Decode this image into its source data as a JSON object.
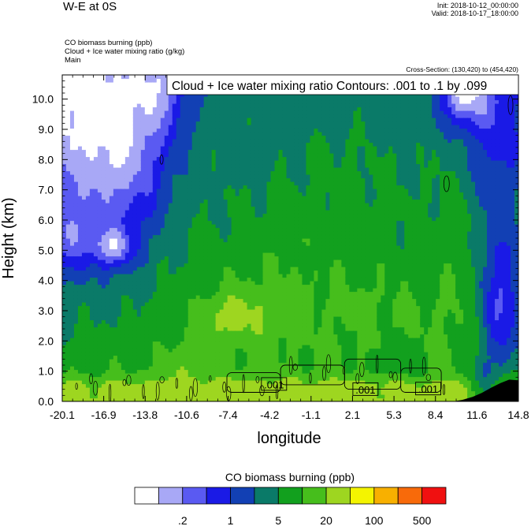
{
  "header": {
    "title": "W-E at 0S",
    "init": "Init: 2018-10-12_00:00:00",
    "valid": "Valid: 2018-10-17_18:00:00",
    "field1": "CO biomass burning   (ppb)",
    "field2": "Cloud + Ice water mixing ratio   (g/kg)",
    "field3": "Main",
    "cross_section": "Cross-Section: (130,420) to (454,420)"
  },
  "chart_data": {
    "type": "heatmap",
    "title": "",
    "xlabel": "longitude",
    "ylabel": "Height (km)",
    "xlim": [
      -20.1,
      14.8
    ],
    "ylim": [
      0.0,
      10.8
    ],
    "x_ticks": [
      "-20.1",
      "-16.9",
      "-13.8",
      "-10.6",
      "-7.4",
      "-4.2",
      "-1.1",
      "2.1",
      "5.3",
      "8.4",
      "11.6",
      "14.8"
    ],
    "y_ticks": [
      "0.0",
      "1.0",
      "2.0",
      "3.0",
      "4.0",
      "5.0",
      "6.0",
      "7.0",
      "8.0",
      "9.0",
      "10.0"
    ],
    "contour_title": "Cloud + Ice water mixing ratio Contours: .001 to .1 by .099",
    "contour_labels": [
      {
        "text": ".001",
        "x": -3.9,
        "y": 0.55
      },
      {
        "text": ".001",
        "x": 3.1,
        "y": 0.38
      },
      {
        "text": ".001",
        "x": 7.9,
        "y": 0.4
      }
    ],
    "colorbar": {
      "title": "CO biomass burning  (ppb)",
      "colors": [
        "#ffffff",
        "#a8a8f6",
        "#5a5af2",
        "#1a1ae6",
        "#1240b4",
        "#0a7a68",
        "#12a01e",
        "#46be1c",
        "#9ed620",
        "#f4f400",
        "#f8b000",
        "#f86a0a",
        "#f01010"
      ],
      "tick_labels": [
        ".2",
        "1",
        "5",
        "20",
        "100",
        "500"
      ]
    }
  }
}
